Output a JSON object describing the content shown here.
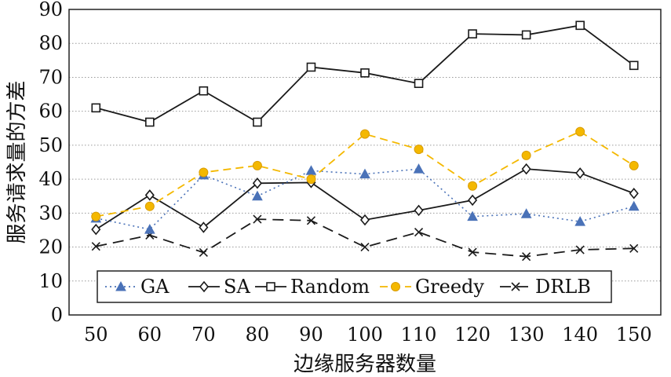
{
  "chart_data": {
    "type": "line",
    "xlabel": "边缘服务器数量",
    "ylabel": "服务请求量的方差",
    "ylim": [
      0,
      90
    ],
    "yticks": [
      0,
      10,
      20,
      30,
      40,
      50,
      60,
      70,
      80,
      90
    ],
    "x": [
      50,
      60,
      70,
      80,
      90,
      100,
      110,
      120,
      130,
      140,
      150
    ],
    "grid": "horizontal-dotted",
    "legend_placement": "bottom",
    "series": [
      {
        "name": "GA",
        "color": "#4a72b8",
        "dash": "dotted",
        "marker": "triangle",
        "values": [
          28.5,
          25.2,
          41.2,
          35.0,
          42.5,
          41.5,
          43.0,
          29.0,
          29.8,
          27.5,
          32.0
        ]
      },
      {
        "name": "SA",
        "color": "#1a1a1a",
        "dash": "solid",
        "marker": "diamond",
        "values": [
          25.2,
          35.3,
          25.8,
          38.8,
          39.0,
          28.0,
          30.8,
          33.8,
          43.0,
          41.8,
          35.8
        ]
      },
      {
        "name": "Random",
        "color": "#1a1a1a",
        "dash": "solid",
        "marker": "square",
        "values": [
          61.0,
          56.8,
          66.0,
          56.8,
          73.0,
          71.3,
          68.2,
          82.8,
          82.5,
          85.3,
          73.5
        ]
      },
      {
        "name": "Greedy",
        "color": "#f4b800",
        "dash": "dashed",
        "marker": "circle",
        "values": [
          29.0,
          32.0,
          42.0,
          44.0,
          40.0,
          53.3,
          48.8,
          38.0,
          47.0,
          54.0,
          44.0
        ]
      },
      {
        "name": "DRLB",
        "color": "#1a1a1a",
        "dash": "longdash",
        "marker": "x",
        "values": [
          20.2,
          23.5,
          18.4,
          28.2,
          27.8,
          20.0,
          24.4,
          18.5,
          17.2,
          19.2,
          19.6
        ]
      }
    ]
  }
}
